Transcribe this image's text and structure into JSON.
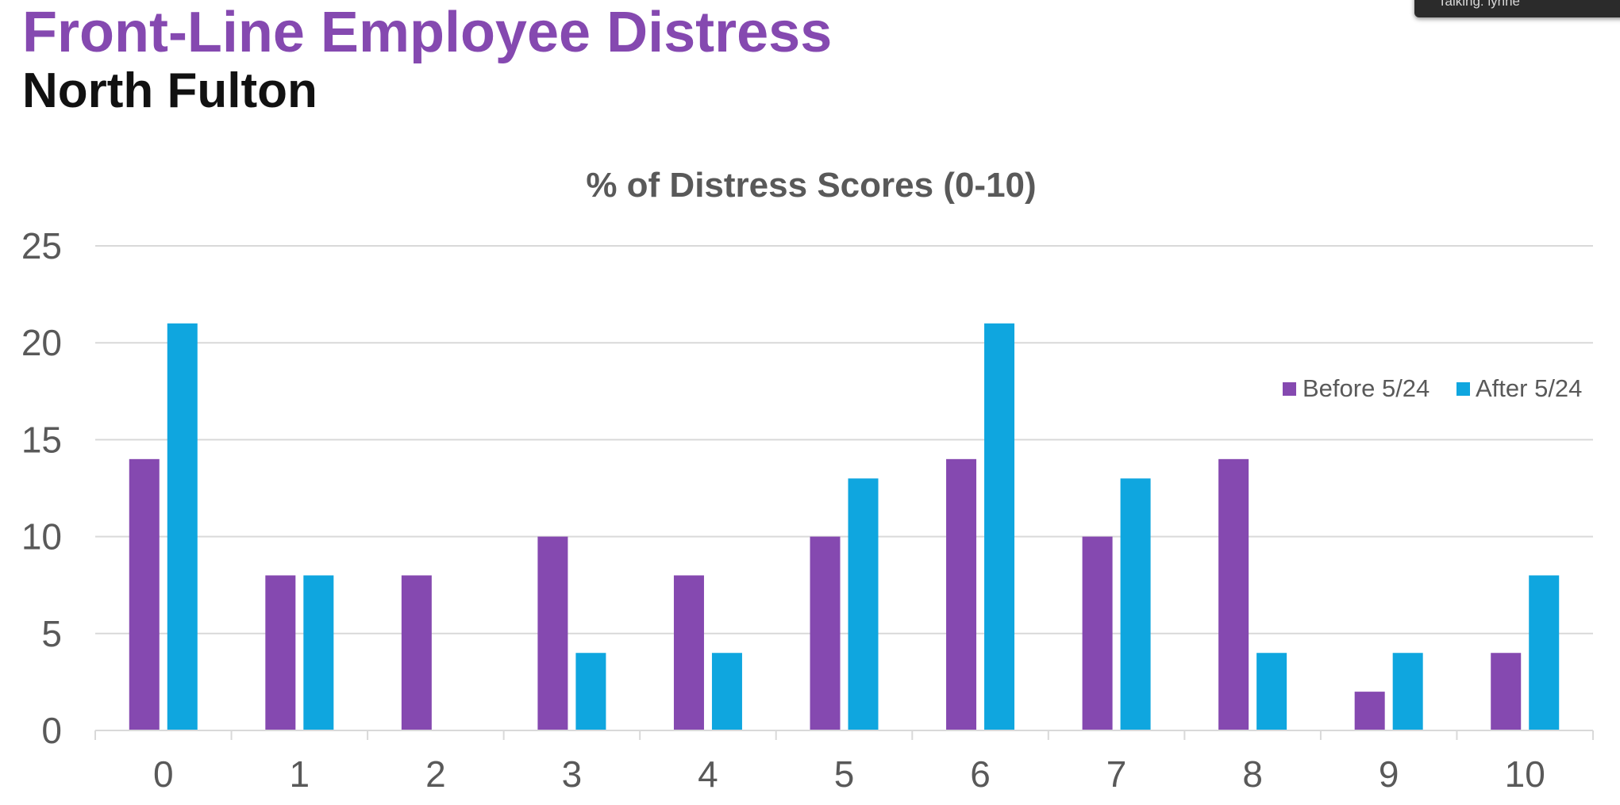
{
  "slide": {
    "title": "Front-Line Employee Distress",
    "subtitle": "North Fulton"
  },
  "overlay": {
    "text": "Talking: lynne"
  },
  "colors": {
    "title": "#8549b0",
    "before": "#8549b0",
    "after": "#0fa6df",
    "gridline": "#d9d9d9",
    "axis_text": "#595959"
  },
  "chart_data": {
    "type": "bar",
    "title": "% of Distress Scores (0-10)",
    "xlabel": "",
    "ylabel": "",
    "categories": [
      "0",
      "1",
      "2",
      "3",
      "4",
      "5",
      "6",
      "7",
      "8",
      "9",
      "10"
    ],
    "series": [
      {
        "name": "Before 5/24",
        "values": [
          14,
          8,
          8,
          10,
          8,
          10,
          14,
          10,
          14,
          2,
          4
        ]
      },
      {
        "name": "After 5/24",
        "values": [
          21,
          8,
          0,
          4,
          4,
          13,
          21,
          13,
          4,
          4,
          8
        ]
      }
    ],
    "ylim": [
      0,
      25
    ],
    "yticks": [
      0,
      5,
      10,
      15,
      20,
      25
    ],
    "grid": true,
    "legend": "right"
  }
}
